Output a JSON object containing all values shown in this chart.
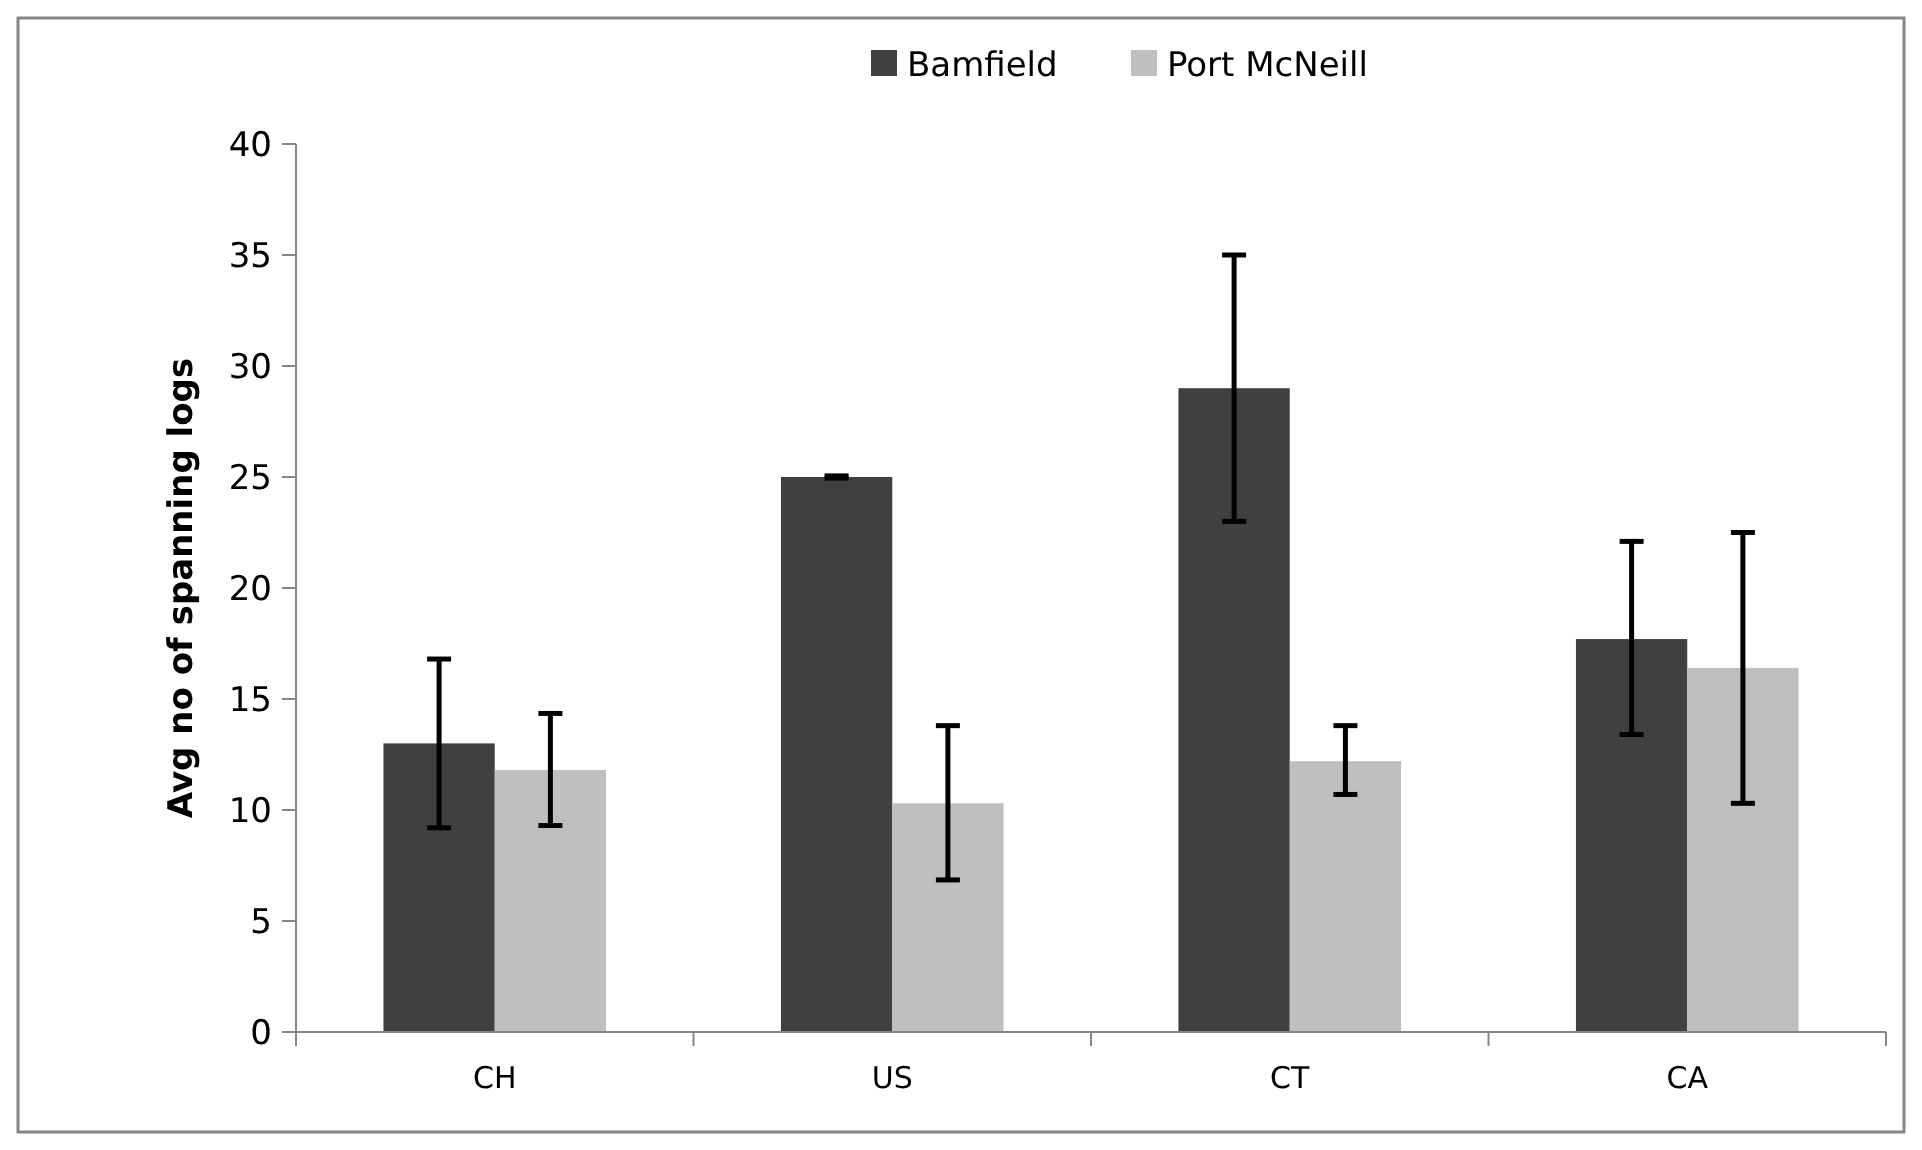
{
  "chart_data": {
    "type": "bar",
    "ylabel": "Avg no of spanning logs",
    "categories": [
      "CH",
      "US",
      "CT",
      "CA"
    ],
    "series": [
      {
        "name": "Bamfield",
        "color": "#404040",
        "values": [
          13.0,
          25.0,
          29.0,
          17.7
        ],
        "errors": [
          [
            9.2,
            16.8
          ],
          [
            24.95,
            25.05
          ],
          [
            23.0,
            35.0
          ],
          [
            13.4,
            22.1
          ]
        ]
      },
      {
        "name": "Port McNeill",
        "color": "#bfbfbf",
        "values": [
          11.8,
          10.3,
          12.2,
          16.4
        ],
        "errors": [
          [
            9.3,
            14.35
          ],
          [
            6.85,
            13.8
          ],
          [
            10.7,
            13.8
          ],
          [
            10.3,
            22.5
          ]
        ]
      }
    ],
    "ylim": [
      0,
      40
    ],
    "yticks": [
      0,
      5,
      10,
      15,
      20,
      25,
      30,
      35,
      40
    ],
    "grid": false,
    "legend": "top"
  }
}
